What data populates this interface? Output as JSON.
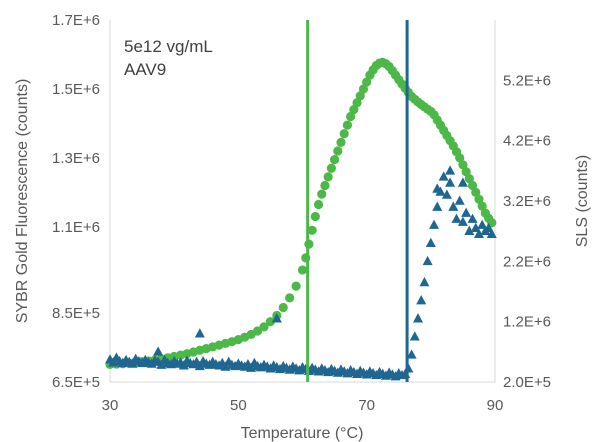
{
  "chart_data": {
    "type": "scatter",
    "annotation_lines": [
      "5e12 vg/mL",
      "AAV9"
    ],
    "xlabel": "Temperature (°C)",
    "ylabel": "SYBR Gold Fluorescence (counts)",
    "y2label": "SLS (counts)",
    "xlim": [
      30,
      90
    ],
    "ylim": [
      650000,
      1700000
    ],
    "y2lim": [
      200000,
      6200000
    ],
    "xticks": [
      30,
      50,
      70,
      90
    ],
    "xtick_labels": [
      "30",
      "50",
      "70",
      "90"
    ],
    "yticks": [
      650000,
      850000,
      1100000,
      1300000,
      1500000,
      1700000
    ],
    "ytick_labels": [
      "6.5E+5",
      "8.5E+5",
      "1.1E+6",
      "1.3E+6",
      "1.5E+6",
      "1.7E+6"
    ],
    "y2ticks": [
      200000,
      1200000,
      2200000,
      3200000,
      4200000,
      5200000
    ],
    "y2tick_labels": [
      "2.0E+5",
      "1.2E+6",
      "2.2E+6",
      "3.2E+6",
      "4.2E+6",
      "5.2E+6"
    ],
    "grid": false,
    "vlines": [
      {
        "x": 60.8,
        "color": "#4cb848"
      },
      {
        "x": 76.3,
        "color": "#1f6691"
      }
    ],
    "series": [
      {
        "axis": "left",
        "marker": "circle",
        "color": "#4cb848",
        "x": [
          30,
          31,
          32,
          33,
          34,
          35,
          36,
          37,
          38,
          39,
          40,
          41,
          42,
          43,
          44,
          45,
          46,
          47,
          48,
          49,
          50,
          51,
          52,
          53,
          54,
          55,
          56,
          57,
          58,
          59,
          60,
          60.5,
          61,
          61.5,
          62,
          62.5,
          63,
          63.5,
          64,
          64.5,
          65,
          65.5,
          66,
          66.5,
          67,
          67.5,
          68,
          68.5,
          69,
          69.5,
          70,
          70.5,
          71,
          71.5,
          72,
          72.5,
          73,
          73.5,
          74,
          74.5,
          75,
          75.5,
          76,
          76.5,
          77,
          77.5,
          78,
          78.5,
          79,
          79.5,
          80,
          80.5,
          81,
          81.5,
          82,
          82.5,
          83,
          83.5,
          84,
          84.5,
          85,
          85.5,
          86,
          86.5,
          87,
          87.5,
          88,
          88.5,
          89,
          89.5
        ],
        "y": [
          701000,
          702000,
          703000,
          705000,
          707000,
          709000,
          711000,
          714000,
          717000,
          720000,
          724000,
          728000,
          732000,
          737000,
          742000,
          747000,
          752000,
          757000,
          762000,
          767000,
          773000,
          780000,
          788000,
          798000,
          810000,
          825000,
          843000,
          866000,
          894000,
          928000,
          975000,
          1010000,
          1050000,
          1090000,
          1130000,
          1165000,
          1195000,
          1220000,
          1245000,
          1270000,
          1295000,
          1320000,
          1345000,
          1370000,
          1395000,
          1420000,
          1440000,
          1460000,
          1480000,
          1500000,
          1520000,
          1540000,
          1555000,
          1568000,
          1575000,
          1577000,
          1573000,
          1565000,
          1553000,
          1540000,
          1527000,
          1514000,
          1502000,
          1490000,
          1478000,
          1470000,
          1462000,
          1455000,
          1448000,
          1441000,
          1435000,
          1425000,
          1410000,
          1395000,
          1380000,
          1365000,
          1350000,
          1335000,
          1318000,
          1300000,
          1280000,
          1260000,
          1240000,
          1220000,
          1200000,
          1180000,
          1160000,
          1140000,
          1125000,
          1112000
        ]
      },
      {
        "axis": "right",
        "marker": "triangle",
        "color": "#1f6691",
        "x": [
          30,
          30.5,
          31,
          31.5,
          32,
          32.5,
          33,
          33.5,
          34,
          34.5,
          35,
          35.5,
          36,
          36.5,
          37,
          37.5,
          38,
          38.5,
          39,
          39.5,
          40,
          40.5,
          41,
          41.5,
          42,
          42.5,
          43,
          43.5,
          44,
          44.5,
          45,
          45.5,
          46,
          46.5,
          47,
          47.5,
          48,
          48.5,
          49,
          49.5,
          50,
          50.5,
          51,
          51.5,
          52,
          52.5,
          53,
          53.5,
          54,
          54.5,
          55,
          55.5,
          56,
          56.5,
          57,
          57.5,
          58,
          58.5,
          59,
          59.5,
          60,
          60.5,
          61,
          61.5,
          62,
          62.5,
          63,
          63.5,
          64,
          64.5,
          65,
          65.5,
          66,
          66.5,
          67,
          67.5,
          68,
          68.5,
          69,
          69.5,
          70,
          70.5,
          71,
          71.5,
          72,
          72.5,
          73,
          73.5,
          74,
          74.5,
          75,
          75.5,
          76,
          76.5,
          77,
          77.5,
          78,
          78.5,
          79,
          79.5,
          80,
          80.5,
          81,
          81.5,
          82,
          82.5,
          83,
          83.5,
          84,
          84.5,
          85,
          85.5,
          86,
          86.5,
          87,
          87.5,
          88,
          88.5,
          89,
          89.5,
          44,
          56,
          37.5,
          81,
          83,
          85
        ],
        "y": [
          570000,
          520000,
          600000,
          540000,
          510000,
          560000,
          530000,
          500000,
          580000,
          540000,
          510000,
          560000,
          520000,
          500000,
          550000,
          530000,
          480000,
          560000,
          510000,
          490000,
          540000,
          500000,
          520000,
          470000,
          550000,
          510000,
          490000,
          530000,
          460000,
          540000,
          500000,
          480000,
          530000,
          490000,
          470000,
          510000,
          450000,
          530000,
          480000,
          460000,
          500000,
          470000,
          450000,
          490000,
          430000,
          510000,
          460000,
          440000,
          480000,
          450000,
          420000,
          470000,
          440000,
          410000,
          460000,
          430000,
          400000,
          450000,
          420000,
          390000,
          440000,
          410000,
          380000,
          430000,
          400000,
          370000,
          420000,
          390000,
          360000,
          410000,
          380000,
          350000,
          400000,
          370000,
          340000,
          390000,
          360000,
          330000,
          380000,
          350000,
          320000,
          370000,
          340000,
          310000,
          360000,
          330000,
          300000,
          350000,
          320000,
          290000,
          340000,
          310000,
          330000,
          420000,
          650000,
          950000,
          1250000,
          1550000,
          1850000,
          2200000,
          2500000,
          2800000,
          3100000,
          3350000,
          3600000,
          3300000,
          3500000,
          3100000,
          2900000,
          3200000,
          2850000,
          3000000,
          2700000,
          2900000,
          2750000,
          2650000,
          2800000,
          2700000,
          2750000,
          2650000,
          1000000,
          1250000,
          700000,
          3400000,
          3700000,
          3500000
        ]
      }
    ]
  }
}
